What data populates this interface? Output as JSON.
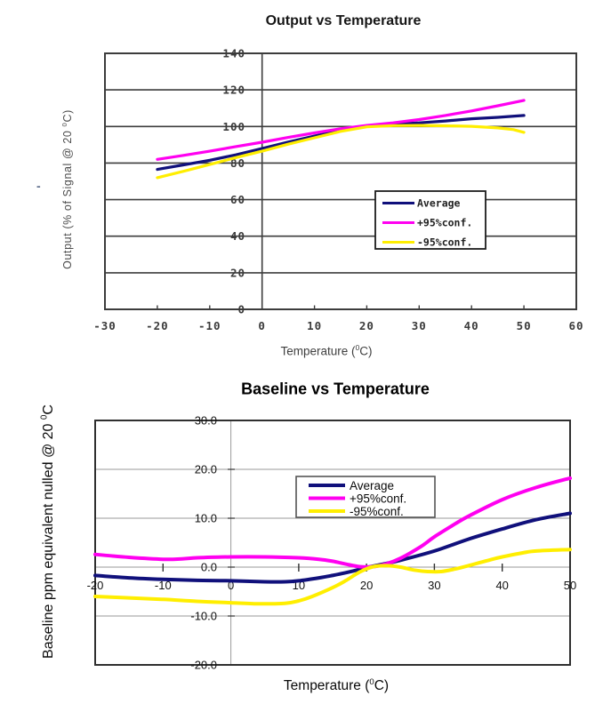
{
  "artifacts": {
    "stray_dash": "-"
  },
  "chart_data": [
    {
      "type": "line",
      "title": "Output vs Temperature",
      "xlabel": {
        "pre": "Temperature (",
        "sup": "0",
        "post": "C)"
      },
      "ylabel": {
        "pre": "Output (% of Signal @ 20 ",
        "sup": "0",
        "post": "C)"
      },
      "xlim": [
        -30,
        60
      ],
      "ylim": [
        0,
        140
      ],
      "xticks": [
        -30,
        -20,
        -10,
        0,
        10,
        20,
        30,
        40,
        50,
        60
      ],
      "xticklabels": [
        "-30",
        "-20",
        "-10",
        "0",
        "10",
        "20",
        "30",
        "40",
        "50",
        "60"
      ],
      "yticks": [
        0,
        20,
        40,
        60,
        80,
        100,
        120,
        140
      ],
      "yticklabels": [
        "0",
        "20",
        "40",
        "60",
        "80",
        "100",
        "120",
        "140"
      ],
      "grid": "horizontal",
      "y_axis_at_x": 0,
      "legend_position": "center-right",
      "series": [
        {
          "name": "Average",
          "color": "#10107b",
          "points": [
            [
              -20,
              76.5
            ],
            [
              -15,
              79
            ],
            [
              -10,
              81.5
            ],
            [
              -5,
              84.5
            ],
            [
              0,
              88
            ],
            [
              5,
              91.5
            ],
            [
              10,
              94.8
            ],
            [
              15,
              97.8
            ],
            [
              20,
              100.2
            ],
            [
              25,
              101.3
            ],
            [
              30,
              102
            ],
            [
              35,
              103
            ],
            [
              40,
              104.2
            ],
            [
              45,
              105
            ],
            [
              50,
              106
            ]
          ]
        },
        {
          "name": "+95%conf.",
          "color": "#ff00f0",
          "points": [
            [
              -20,
              82
            ],
            [
              -15,
              84.2
            ],
            [
              -10,
              86.5
            ],
            [
              -5,
              89
            ],
            [
              0,
              91.4
            ],
            [
              5,
              94
            ],
            [
              10,
              96.5
            ],
            [
              15,
              98.8
            ],
            [
              20,
              100.6
            ],
            [
              25,
              102
            ],
            [
              30,
              103.8
            ],
            [
              35,
              106
            ],
            [
              40,
              108.5
            ],
            [
              45,
              111.3
            ],
            [
              50,
              114.3
            ]
          ]
        },
        {
          "name": "-95%conf.",
          "color": "#ffee00",
          "points": [
            [
              -20,
              72
            ],
            [
              -15,
              75.5
            ],
            [
              -10,
              79.2
            ],
            [
              -5,
              83
            ],
            [
              0,
              86.5
            ],
            [
              5,
              90.3
            ],
            [
              10,
              93.8
            ],
            [
              15,
              97.3
            ],
            [
              20,
              99.8
            ],
            [
              25,
              100.5
            ],
            [
              30,
              100.6
            ],
            [
              35,
              100.4
            ],
            [
              40,
              100.1
            ],
            [
              45,
              99.2
            ],
            [
              48,
              98.3
            ],
            [
              50,
              96.8
            ]
          ]
        }
      ]
    },
    {
      "type": "line",
      "title": "Baseline vs Temperature",
      "xlabel": {
        "pre": "Temperature (",
        "sup": "0",
        "post": "C)"
      },
      "ylabel": {
        "pre": "Baseline ppm equivalent nulled @ 20 ",
        "sup": "0",
        "post": "C"
      },
      "xlim": [
        -20,
        50
      ],
      "ylim": [
        -20,
        30
      ],
      "xticks": [
        -20,
        -10,
        0,
        10,
        20,
        30,
        40,
        50
      ],
      "xticklabels": [
        "-20",
        "-10",
        "0",
        "10",
        "20",
        "30",
        "40",
        "50"
      ],
      "yticks": [
        30,
        20,
        10,
        0,
        -10,
        -20
      ],
      "yticklabels": [
        "30.0",
        "20.0",
        "10.0",
        "0.0",
        "-10.0",
        "-20.0"
      ],
      "grid": "horizontal",
      "y_axis_at_x": 0,
      "legend_position": "top-center",
      "series": [
        {
          "name": "Average",
          "color": "#10107b",
          "points": [
            [
              -20,
              -1.7
            ],
            [
              -15,
              -2.2
            ],
            [
              -10,
              -2.5
            ],
            [
              -5,
              -2.7
            ],
            [
              0,
              -2.8
            ],
            [
              5,
              -3
            ],
            [
              8,
              -3
            ],
            [
              10,
              -2.8
            ],
            [
              13,
              -2.2
            ],
            [
              15,
              -1.7
            ],
            [
              18,
              -0.8
            ],
            [
              20,
              -0.1
            ],
            [
              22,
              0.5
            ],
            [
              25,
              1.4
            ],
            [
              30,
              3.3
            ],
            [
              35,
              5.7
            ],
            [
              40,
              7.8
            ],
            [
              45,
              9.7
            ],
            [
              50,
              11
            ]
          ]
        },
        {
          "name": "+95%conf.",
          "color": "#ff00f0",
          "points": [
            [
              -20,
              2.6
            ],
            [
              -15,
              2
            ],
            [
              -10,
              1.6
            ],
            [
              -7,
              1.7
            ],
            [
              -5,
              1.9
            ],
            [
              0,
              2.1
            ],
            [
              5,
              2.1
            ],
            [
              10,
              1.9
            ],
            [
              13,
              1.6
            ],
            [
              15,
              1.2
            ],
            [
              17,
              0.6
            ],
            [
              19,
              0.1
            ],
            [
              21,
              0.1
            ],
            [
              23,
              0.7
            ],
            [
              25,
              1.8
            ],
            [
              28,
              4.2
            ],
            [
              30,
              6.2
            ],
            [
              33,
              8.8
            ],
            [
              35,
              10.4
            ],
            [
              40,
              13.8
            ],
            [
              45,
              16.3
            ],
            [
              50,
              18.2
            ]
          ]
        },
        {
          "name": "-95%conf.",
          "color": "#ffee00",
          "points": [
            [
              -20,
              -6
            ],
            [
              -15,
              -6.3
            ],
            [
              -10,
              -6.6
            ],
            [
              -5,
              -7
            ],
            [
              0,
              -7.3
            ],
            [
              4,
              -7.5
            ],
            [
              8,
              -7.4
            ],
            [
              10,
              -6.9
            ],
            [
              12,
              -6
            ],
            [
              15,
              -4.2
            ],
            [
              17,
              -2.7
            ],
            [
              19,
              -1
            ],
            [
              21,
              0.1
            ],
            [
              23,
              0.3
            ],
            [
              25,
              0
            ],
            [
              27,
              -0.6
            ],
            [
              29,
              -0.9
            ],
            [
              31,
              -0.9
            ],
            [
              33,
              -0.4
            ],
            [
              35,
              0.3
            ],
            [
              38,
              1.4
            ],
            [
              40,
              2.1
            ],
            [
              43,
              2.9
            ],
            [
              45,
              3.3
            ],
            [
              50,
              3.6
            ]
          ]
        }
      ]
    }
  ]
}
